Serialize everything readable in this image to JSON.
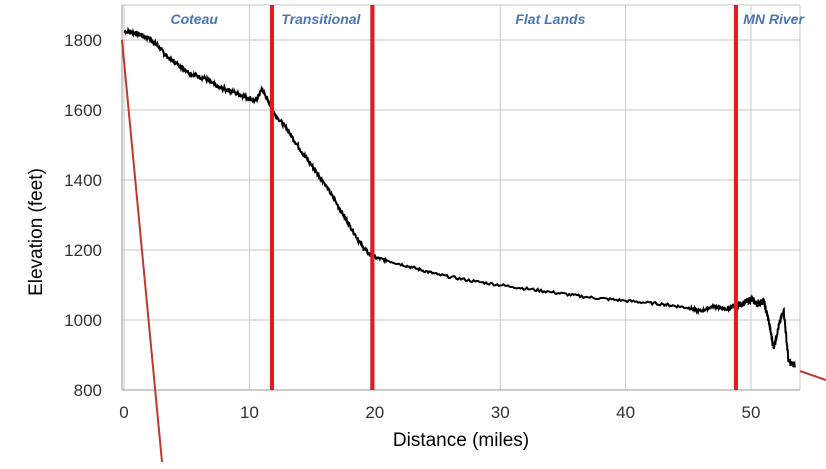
{
  "chart_data": {
    "type": "line",
    "title": "",
    "xlabel": "Distance (miles)",
    "ylabel": "Elevation (feet)",
    "xlim": [
      0,
      54
    ],
    "ylim": [
      800,
      1900
    ],
    "x_ticks": [
      0,
      10,
      20,
      30,
      40,
      50
    ],
    "y_ticks": [
      800,
      1000,
      1200,
      1400,
      1600,
      1800
    ],
    "grid": true,
    "colors": {
      "line": "#000000",
      "dividers": "#e3191c",
      "region_labels": "#4a76b8",
      "annotation": "#c0392b"
    },
    "regions": [
      {
        "label": "Coteau",
        "x_center": 5.6
      },
      {
        "label": "Transitional",
        "x_center": 15.7
      },
      {
        "label": "Flat Lands",
        "x_center": 34.0
      },
      {
        "label": "MN River",
        "x_center": 51.8
      }
    ],
    "dividers": [
      11.8,
      19.8,
      48.8
    ],
    "series": [
      {
        "values_x": [
          0,
          1,
          2,
          2.8,
          3.5,
          4.5,
          5.5,
          6.5,
          7.5,
          8.5,
          9.5,
          10.5,
          11,
          11.5,
          12,
          13,
          14,
          15,
          16,
          17,
          18,
          19,
          19.8,
          21,
          23,
          25,
          28,
          31,
          34,
          37,
          40,
          43,
          45,
          46,
          47,
          48,
          48.8,
          49.5,
          50,
          50.5,
          51,
          51.4,
          51.8,
          52.2,
          52.6,
          53,
          53.5
        ],
        "values_y": [
          1825,
          1820,
          1805,
          1780,
          1750,
          1725,
          1700,
          1690,
          1665,
          1655,
          1640,
          1625,
          1660,
          1625,
          1590,
          1545,
          1490,
          1440,
          1390,
          1330,
          1270,
          1210,
          1180,
          1170,
          1150,
          1130,
          1110,
          1095,
          1080,
          1065,
          1055,
          1045,
          1035,
          1025,
          1040,
          1030,
          1040,
          1050,
          1060,
          1045,
          1055,
          1000,
          920,
          980,
          1030,
          880,
          870
        ]
      }
    ]
  }
}
